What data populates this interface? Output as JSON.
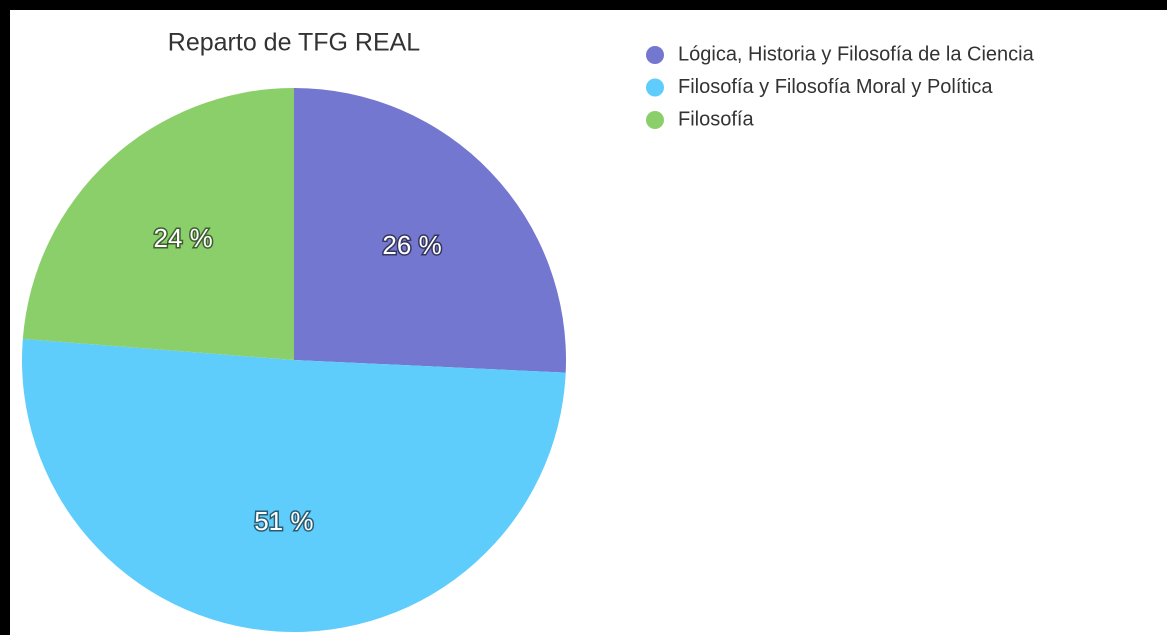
{
  "chart_data": {
    "type": "pie",
    "title": "Reparto de TFG REAL",
    "categories": [
      "Lógica, Historia y Filosofía de la Ciencia",
      "Filosofía y Filosofía Moral y Política",
      "Filosofía"
    ],
    "values": [
      26,
      51,
      24
    ],
    "value_labels": [
      "26 %",
      "51 %",
      "24 %"
    ],
    "colors": [
      "#7377cf",
      "#5ecdfc",
      "#8bcf6b"
    ],
    "legend": "top-right"
  }
}
